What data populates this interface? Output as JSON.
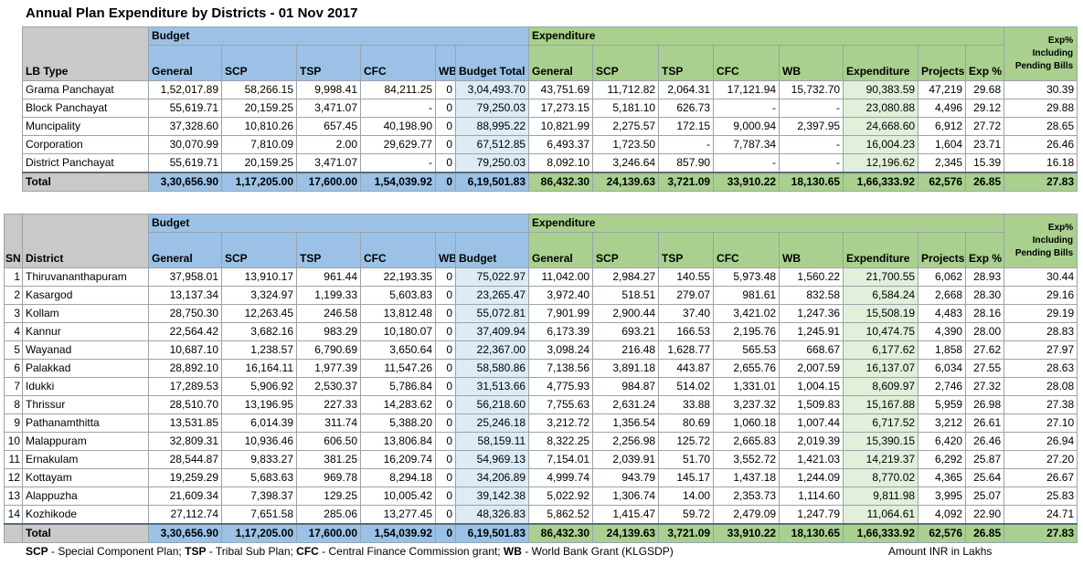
{
  "title": "Annual Plan Expenditure by Districts - 01 Nov 2017",
  "headers": {
    "budget": "Budget",
    "expenditure": "Expenditure",
    "lb_type": "LB Type",
    "sn": "SN",
    "district": "District",
    "general": "General",
    "scp": "SCP",
    "tsp": "TSP",
    "cfc": "CFC",
    "wb": "WB",
    "budget_total": "Budget Total",
    "budget_col": "Budget",
    "exp_general": "General",
    "exp_scp": "SCP",
    "exp_tsp": "TSP",
    "exp_cfc": "CFC",
    "exp_wb": "WB",
    "expenditure_col": "Expenditure",
    "projects": "Projects",
    "exp_pct": "Exp %",
    "exp_pct_pending": "Exp% Including Pending Bills"
  },
  "lb_table": {
    "rows": [
      {
        "name": "Grama Panchayat",
        "general": "1,52,017.89",
        "scp": "58,266.15",
        "tsp": "9,998.41",
        "cfc": "84,211.25",
        "wb": "0",
        "total": "3,04,493.70",
        "e_general": "43,751.69",
        "e_scp": "11,712.82",
        "e_tsp": "2,064.31",
        "e_cfc": "17,121.94",
        "e_wb": "15,732.70",
        "exp": "90,383.59",
        "projects": "47,219",
        "pct": "29.68",
        "pend": "30.39"
      },
      {
        "name": "Block Panchayat",
        "general": "55,619.71",
        "scp": "20,159.25",
        "tsp": "3,471.07",
        "cfc": "-",
        "wb": "0",
        "total": "79,250.03",
        "e_general": "17,273.15",
        "e_scp": "5,181.10",
        "e_tsp": "626.73",
        "e_cfc": "-",
        "e_wb": "-",
        "exp": "23,080.88",
        "projects": "4,496",
        "pct": "29.12",
        "pend": "29.88"
      },
      {
        "name": "Muncipality",
        "general": "37,328.60",
        "scp": "10,810.26",
        "tsp": "657.45",
        "cfc": "40,198.90",
        "wb": "0",
        "total": "88,995.22",
        "e_general": "10,821.99",
        "e_scp": "2,275.57",
        "e_tsp": "172.15",
        "e_cfc": "9,000.94",
        "e_wb": "2,397.95",
        "exp": "24,668.60",
        "projects": "6,912",
        "pct": "27.72",
        "pend": "28.65"
      },
      {
        "name": "Corporation",
        "general": "30,070.99",
        "scp": "7,810.09",
        "tsp": "2.00",
        "cfc": "29,629.77",
        "wb": "0",
        "total": "67,512.85",
        "e_general": "6,493.37",
        "e_scp": "1,723.50",
        "e_tsp": "-",
        "e_cfc": "7,787.34",
        "e_wb": "-",
        "exp": "16,004.23",
        "projects": "1,604",
        "pct": "23.71",
        "pend": "26.46"
      },
      {
        "name": "District Panchayat",
        "general": "55,619.71",
        "scp": "20,159.25",
        "tsp": "3,471.07",
        "cfc": "-",
        "wb": "0",
        "total": "79,250.03",
        "e_general": "8,092.10",
        "e_scp": "3,246.64",
        "e_tsp": "857.90",
        "e_cfc": "-",
        "e_wb": "-",
        "exp": "12,196.62",
        "projects": "2,345",
        "pct": "15.39",
        "pend": "16.18"
      }
    ],
    "total": {
      "name": "Total",
      "general": "3,30,656.90",
      "scp": "1,17,205.00",
      "tsp": "17,600.00",
      "cfc": "1,54,039.92",
      "wb": "0",
      "total": "6,19,501.83",
      "e_general": "86,432.30",
      "e_scp": "24,139.63",
      "e_tsp": "3,721.09",
      "e_cfc": "33,910.22",
      "e_wb": "18,130.65",
      "exp": "1,66,333.92",
      "projects": "62,576",
      "pct": "26.85",
      "pend": "27.83"
    }
  },
  "district_table": {
    "rows": [
      {
        "sn": "1",
        "name": "Thiruvananthapuram",
        "general": "37,958.01",
        "scp": "13,910.17",
        "tsp": "961.44",
        "cfc": "22,193.35",
        "wb": "0",
        "total": "75,022.97",
        "e_general": "11,042.00",
        "e_scp": "2,984.27",
        "e_tsp": "140.55",
        "e_cfc": "5,973.48",
        "e_wb": "1,560.22",
        "exp": "21,700.55",
        "projects": "6,062",
        "pct": "28.93",
        "pend": "30.44"
      },
      {
        "sn": "2",
        "name": "Kasargod",
        "general": "13,137.34",
        "scp": "3,324.97",
        "tsp": "1,199.33",
        "cfc": "5,603.83",
        "wb": "0",
        "total": "23,265.47",
        "e_general": "3,972.40",
        "e_scp": "518.51",
        "e_tsp": "279.07",
        "e_cfc": "981.61",
        "e_wb": "832.58",
        "exp": "6,584.24",
        "projects": "2,668",
        "pct": "28.30",
        "pend": "29.16"
      },
      {
        "sn": "3",
        "name": "Kollam",
        "general": "28,750.30",
        "scp": "12,263.45",
        "tsp": "246.58",
        "cfc": "13,812.48",
        "wb": "0",
        "total": "55,072.81",
        "e_general": "7,901.99",
        "e_scp": "2,900.44",
        "e_tsp": "37.40",
        "e_cfc": "3,421.02",
        "e_wb": "1,247.36",
        "exp": "15,508.19",
        "projects": "4,483",
        "pct": "28.16",
        "pend": "29.19"
      },
      {
        "sn": "4",
        "name": "Kannur",
        "general": "22,564.42",
        "scp": "3,682.16",
        "tsp": "983.29",
        "cfc": "10,180.07",
        "wb": "0",
        "total": "37,409.94",
        "e_general": "6,173.39",
        "e_scp": "693.21",
        "e_tsp": "166.53",
        "e_cfc": "2,195.76",
        "e_wb": "1,245.91",
        "exp": "10,474.75",
        "projects": "4,390",
        "pct": "28.00",
        "pend": "28.83"
      },
      {
        "sn": "5",
        "name": "Wayanad",
        "general": "10,687.10",
        "scp": "1,238.57",
        "tsp": "6,790.69",
        "cfc": "3,650.64",
        "wb": "0",
        "total": "22,367.00",
        "e_general": "3,098.24",
        "e_scp": "216.48",
        "e_tsp": "1,628.77",
        "e_cfc": "565.53",
        "e_wb": "668.67",
        "exp": "6,177.62",
        "projects": "1,858",
        "pct": "27.62",
        "pend": "27.97"
      },
      {
        "sn": "6",
        "name": "Palakkad",
        "general": "28,892.10",
        "scp": "16,164.11",
        "tsp": "1,977.39",
        "cfc": "11,547.26",
        "wb": "0",
        "total": "58,580.86",
        "e_general": "7,138.56",
        "e_scp": "3,891.18",
        "e_tsp": "443.87",
        "e_cfc": "2,655.76",
        "e_wb": "2,007.59",
        "exp": "16,137.07",
        "projects": "6,034",
        "pct": "27.55",
        "pend": "28.63"
      },
      {
        "sn": "7",
        "name": "Idukki",
        "general": "17,289.53",
        "scp": "5,906.92",
        "tsp": "2,530.37",
        "cfc": "5,786.84",
        "wb": "0",
        "total": "31,513.66",
        "e_general": "4,775.93",
        "e_scp": "984.87",
        "e_tsp": "514.02",
        "e_cfc": "1,331.01",
        "e_wb": "1,004.15",
        "exp": "8,609.97",
        "projects": "2,746",
        "pct": "27.32",
        "pend": "28.08"
      },
      {
        "sn": "8",
        "name": "Thrissur",
        "general": "28,510.70",
        "scp": "13,196.95",
        "tsp": "227.33",
        "cfc": "14,283.62",
        "wb": "0",
        "total": "56,218.60",
        "e_general": "7,755.63",
        "e_scp": "2,631.24",
        "e_tsp": "33.88",
        "e_cfc": "3,237.32",
        "e_wb": "1,509.83",
        "exp": "15,167.88",
        "projects": "5,959",
        "pct": "26.98",
        "pend": "27.38"
      },
      {
        "sn": "9",
        "name": "Pathanamthitta",
        "general": "13,531.85",
        "scp": "6,014.39",
        "tsp": "311.74",
        "cfc": "5,388.20",
        "wb": "0",
        "total": "25,246.18",
        "e_general": "3,212.72",
        "e_scp": "1,356.54",
        "e_tsp": "80.69",
        "e_cfc": "1,060.18",
        "e_wb": "1,007.44",
        "exp": "6,717.52",
        "projects": "3,212",
        "pct": "26.61",
        "pend": "27.10"
      },
      {
        "sn": "10",
        "name": "Malappuram",
        "general": "32,809.31",
        "scp": "10,936.46",
        "tsp": "606.50",
        "cfc": "13,806.84",
        "wb": "0",
        "total": "58,159.11",
        "e_general": "8,322.25",
        "e_scp": "2,256.98",
        "e_tsp": "125.72",
        "e_cfc": "2,665.83",
        "e_wb": "2,019.39",
        "exp": "15,390.15",
        "projects": "6,420",
        "pct": "26.46",
        "pend": "26.94"
      },
      {
        "sn": "11",
        "name": "Ernakulam",
        "general": "28,544.87",
        "scp": "9,833.27",
        "tsp": "381.25",
        "cfc": "16,209.74",
        "wb": "0",
        "total": "54,969.13",
        "e_general": "7,154.01",
        "e_scp": "2,039.91",
        "e_tsp": "51.70",
        "e_cfc": "3,552.72",
        "e_wb": "1,421.03",
        "exp": "14,219.37",
        "projects": "6,292",
        "pct": "25.87",
        "pend": "27.20"
      },
      {
        "sn": "12",
        "name": "Kottayam",
        "general": "19,259.29",
        "scp": "5,683.63",
        "tsp": "969.78",
        "cfc": "8,294.18",
        "wb": "0",
        "total": "34,206.89",
        "e_general": "4,999.74",
        "e_scp": "943.79",
        "e_tsp": "145.17",
        "e_cfc": "1,437.18",
        "e_wb": "1,244.09",
        "exp": "8,770.02",
        "projects": "4,365",
        "pct": "25.64",
        "pend": "26.67"
      },
      {
        "sn": "13",
        "name": "Alappuzha",
        "general": "21,609.34",
        "scp": "7,398.37",
        "tsp": "129.25",
        "cfc": "10,005.42",
        "wb": "0",
        "total": "39,142.38",
        "e_general": "5,022.92",
        "e_scp": "1,306.74",
        "e_tsp": "14.00",
        "e_cfc": "2,353.73",
        "e_wb": "1,114.60",
        "exp": "9,811.98",
        "projects": "3,995",
        "pct": "25.07",
        "pend": "25.83"
      },
      {
        "sn": "14",
        "name": "Kozhikode",
        "general": "27,112.74",
        "scp": "7,651.58",
        "tsp": "285.06",
        "cfc": "13,277.45",
        "wb": "0",
        "total": "48,326.83",
        "e_general": "5,862.52",
        "e_scp": "1,415.47",
        "e_tsp": "59.72",
        "e_cfc": "2,479.09",
        "e_wb": "1,247.79",
        "exp": "11,064.61",
        "projects": "4,092",
        "pct": "22.90",
        "pend": "24.71"
      }
    ],
    "total": {
      "name": "Total",
      "general": "3,30,656.90",
      "scp": "1,17,205.00",
      "tsp": "17,600.00",
      "cfc": "1,54,039.92",
      "wb": "0",
      "total": "6,19,501.83",
      "e_general": "86,432.30",
      "e_scp": "24,139.63",
      "e_tsp": "3,721.09",
      "e_cfc": "33,910.22",
      "e_wb": "18,130.65",
      "exp": "1,66,333.92",
      "projects": "62,576",
      "pct": "26.85",
      "pend": "27.83"
    }
  },
  "legend": {
    "scp_key": "SCP",
    "scp_text": " - Special Component Plan; ",
    "tsp_key": "TSP",
    "tsp_text": " - Tribal Sub Plan; ",
    "cfc_key": "CFC",
    "cfc_text": " - Central Finance Commission grant; ",
    "wb_key": "WB",
    "wb_text": " - World Bank Grant (KLGSDP)"
  },
  "unit_note": "Amount INR in Lakhs",
  "colors": {
    "budget_header": "#9bc2e6",
    "expenditure_header": "#a9d08e",
    "budget_total_cell": "#ddebf7",
    "expenditure_cell": "#e2efda",
    "label_header": "#c9c9c9"
  }
}
